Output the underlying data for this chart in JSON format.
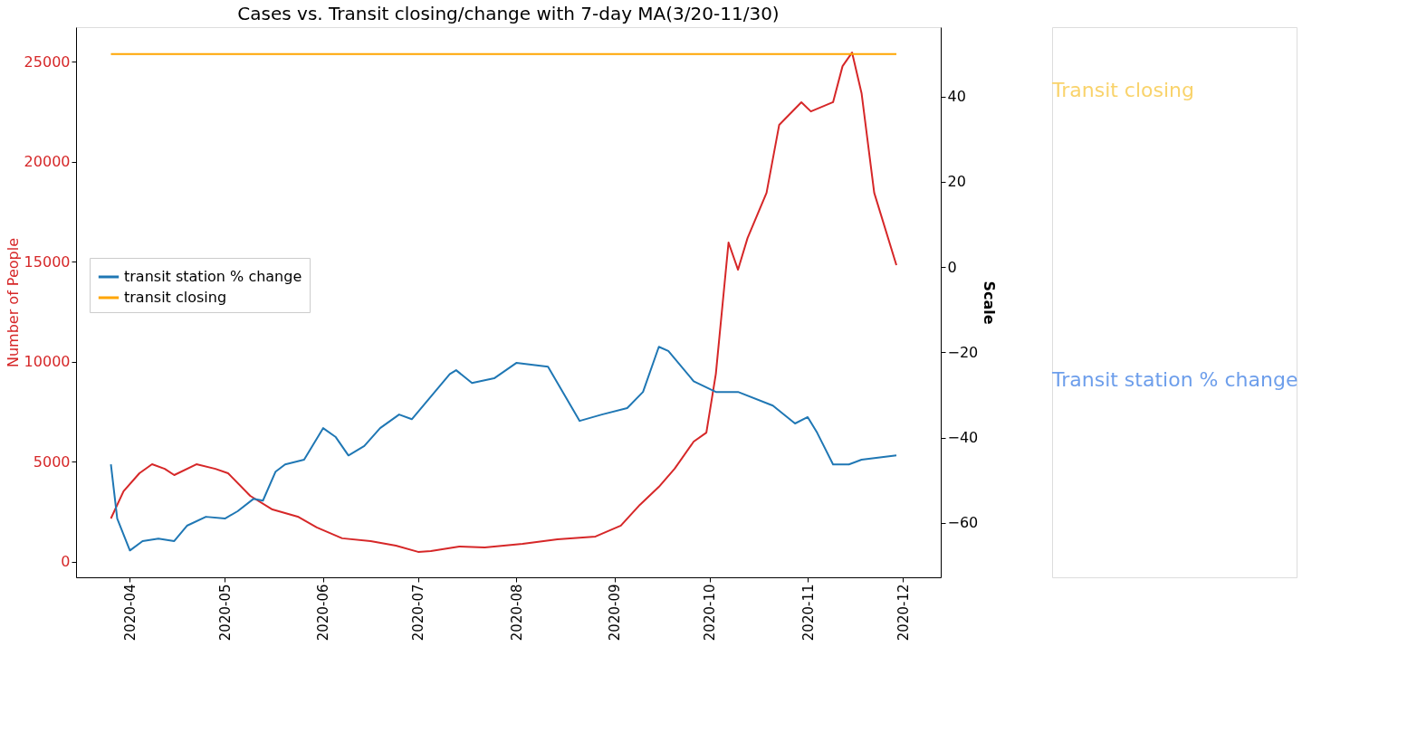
{
  "chart_data": {
    "type": "line",
    "title": "Cases vs. Transit closing/change with 7-day MA(3/20-11/30)",
    "ylabel": "Number of People",
    "y2label": "Scale",
    "xlim": [
      "2020-03-15",
      "2020-12-13"
    ],
    "xticks": [
      "2020-04",
      "2020-05",
      "2020-06",
      "2020-07",
      "2020-08",
      "2020-09",
      "2020-10",
      "2020-11",
      "2020-12"
    ],
    "ylim": [
      -770,
      26720
    ],
    "yticks": [
      0,
      5000,
      10000,
      15000,
      20000,
      25000
    ],
    "y2lim": [
      -72.8,
      56.3
    ],
    "y2ticks": [
      -60,
      -40,
      -20,
      0,
      20,
      40
    ],
    "legend": "left",
    "grid": false,
    "series": [
      {
        "color": "#d62728",
        "x": [
          "2020-03-26",
          "2020-03-30",
          "2020-04-04",
          "2020-04-08",
          "2020-04-12",
          "2020-04-15",
          "2020-04-22",
          "2020-04-28",
          "2020-05-02",
          "2020-05-09",
          "2020-05-16",
          "2020-05-24",
          "2020-05-30",
          "2020-06-07",
          "2020-06-16",
          "2020-06-24",
          "2020-07-01",
          "2020-07-05",
          "2020-07-14",
          "2020-07-22",
          "2020-08-03",
          "2020-08-14",
          "2020-08-26",
          "2020-09-03",
          "2020-09-09",
          "2020-09-15",
          "2020-09-20",
          "2020-09-26",
          "2020-09-30",
          "2020-10-03",
          "2020-10-07",
          "2020-10-10",
          "2020-10-13",
          "2020-10-19",
          "2020-10-23",
          "2020-10-30",
          "2020-11-02",
          "2020-11-09",
          "2020-11-12",
          "2020-11-15",
          "2020-11-18",
          "2020-11-22",
          "2020-11-29"
        ],
        "values": [
          2170,
          3530,
          4430,
          4880,
          4650,
          4340,
          4880,
          4650,
          4430,
          3300,
          2620,
          2260,
          1720,
          1180,
          1040,
          810,
          500,
          540,
          770,
          720,
          900,
          1130,
          1270,
          1810,
          2850,
          3750,
          4660,
          6010,
          6460,
          9400,
          15960,
          14600,
          16180,
          18440,
          21840,
          22970,
          22510,
          22970,
          24770,
          25450,
          23420,
          18440,
          14830
        ]
      },
      {
        "name": "transit station % change",
        "color": "#1f77b4",
        "axis": "y2",
        "x": [
          "2020-03-26",
          "2020-03-28",
          "2020-04-01",
          "2020-04-05",
          "2020-04-10",
          "2020-04-15",
          "2020-04-19",
          "2020-04-25",
          "2020-05-01",
          "2020-05-05",
          "2020-05-10",
          "2020-05-13",
          "2020-05-17",
          "2020-05-20",
          "2020-05-26",
          "2020-06-01",
          "2020-06-05",
          "2020-06-09",
          "2020-06-14",
          "2020-06-19",
          "2020-06-25",
          "2020-06-29",
          "2020-07-05",
          "2020-07-11",
          "2020-07-13",
          "2020-07-18",
          "2020-07-25",
          "2020-08-01",
          "2020-08-11",
          "2020-08-21",
          "2020-08-28",
          "2020-09-05",
          "2020-09-10",
          "2020-09-15",
          "2020-09-18",
          "2020-09-26",
          "2020-10-03",
          "2020-10-10",
          "2020-10-21",
          "2020-10-28",
          "2020-11-01",
          "2020-11-04",
          "2020-11-09",
          "2020-11-14",
          "2020-11-18",
          "2020-11-29"
        ],
        "values": [
          -46.3,
          -59,
          -66.5,
          -64.3,
          -63.7,
          -64.3,
          -60.7,
          -58.6,
          -59,
          -57.3,
          -54.4,
          -54.8,
          -48,
          -46.3,
          -45.2,
          -37.8,
          -39.9,
          -44.2,
          -42,
          -37.8,
          -34.6,
          -35.7,
          -30.4,
          -25.1,
          -24.2,
          -27.2,
          -26.1,
          -22.5,
          -23.4,
          -36.1,
          -34.6,
          -33.1,
          -29.3,
          -18.7,
          -19.7,
          -26.8,
          -29.3,
          -29.3,
          -32.5,
          -36.7,
          -35.2,
          -38.9,
          -46.3,
          -46.3,
          -45.2,
          -44.2
        ]
      },
      {
        "name": "transit closing",
        "color": "#ffa500",
        "axis": "y2",
        "x": [
          "2020-03-26",
          "2020-11-29"
        ],
        "values": [
          50,
          50
        ]
      }
    ],
    "annotations": [
      "Transit closing",
      "Transit station % change"
    ]
  }
}
